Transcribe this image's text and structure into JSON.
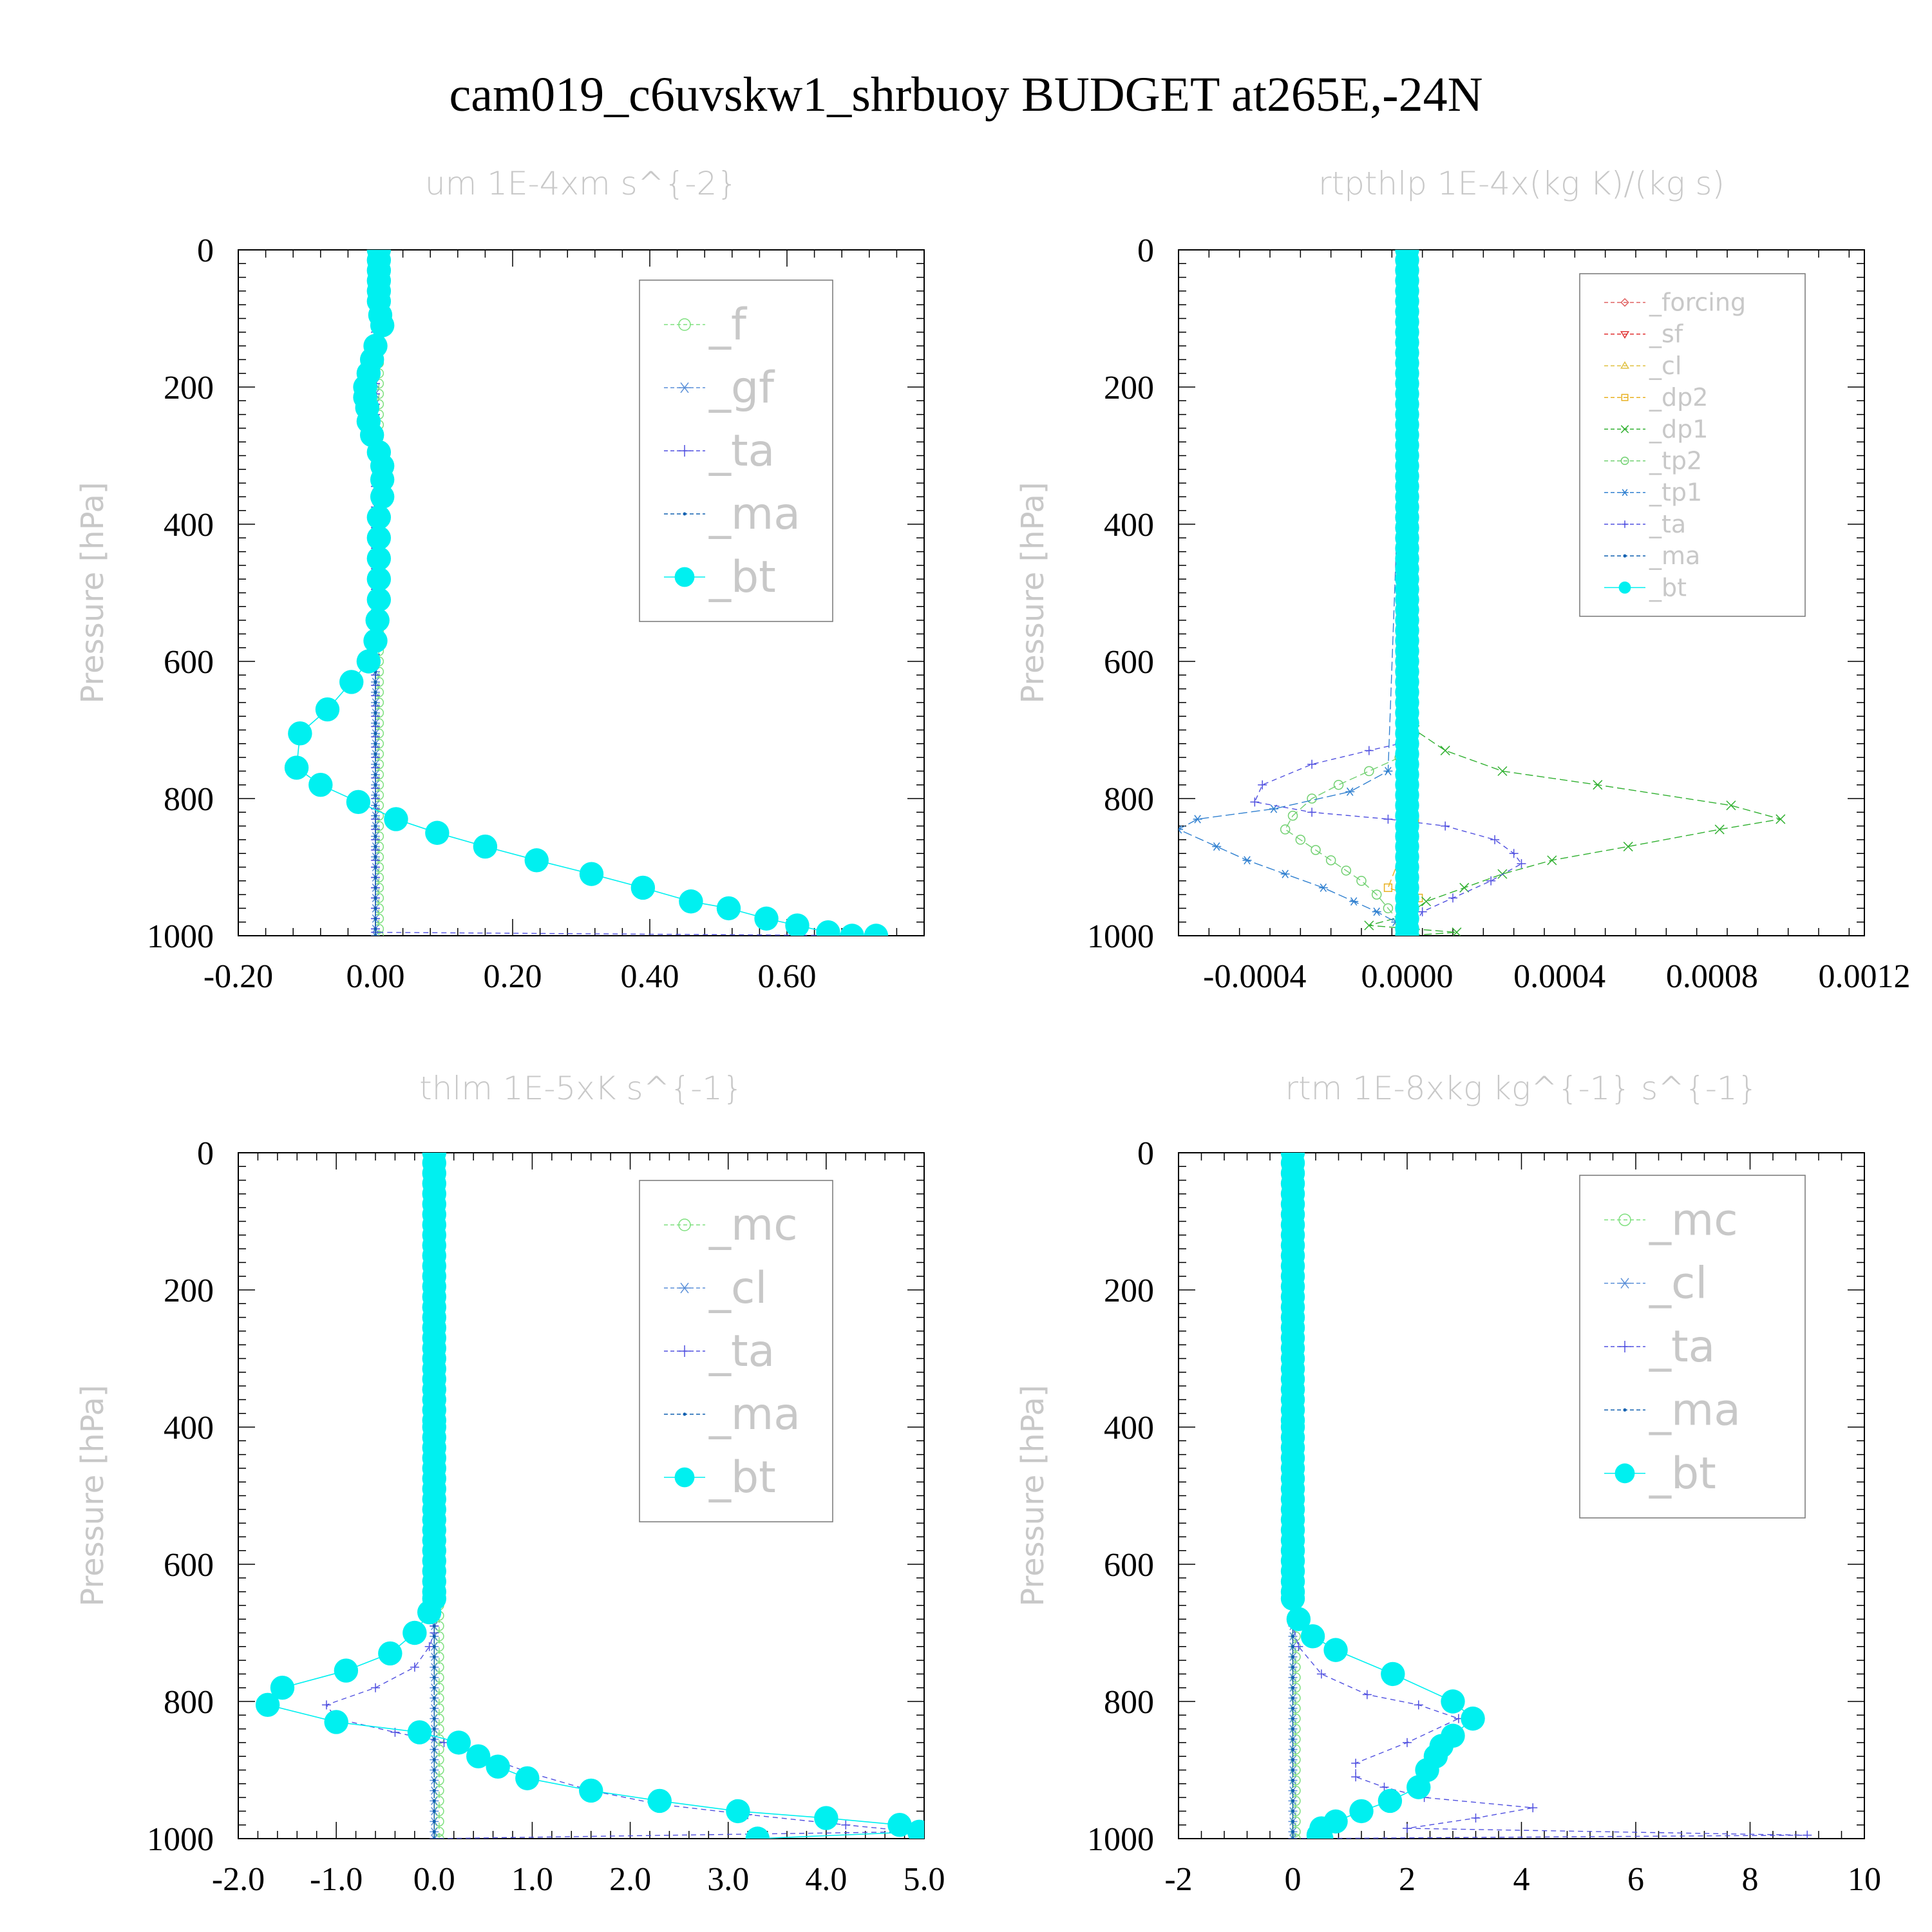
{
  "figure": {
    "title": "cam019_c6uvskw1_shrbuoy  BUDGET at265E,-24N"
  },
  "colors": {
    "_f": "#7ee07e",
    "_gf": "#5a8fd8",
    "_ta": "#5050e0",
    "_ma": "#1060b0",
    "_bt": "#00f0f0",
    "_forcing": "#e06060",
    "_sf": "#e03030",
    "_cl": "#e0c040",
    "_dp2": "#e8b020",
    "_dp1": "#30b030",
    "_tp2": "#70d070",
    "_tp1": "#3080d0",
    "_mc": "#7ee07e",
    "_cl_blue": "#5a8fd8"
  },
  "chart_data": [
    {
      "type": "line",
      "title": "um  1E-4xm s^{-2}",
      "ylabel": "Pressure [hPa]",
      "xlabel": "",
      "xlim": [
        -0.2,
        0.8
      ],
      "ylim": [
        1000,
        0
      ],
      "xticks": [
        "-0.20",
        "0.00",
        "0.20",
        "0.40",
        "0.60"
      ],
      "xtick_values": [
        -0.2,
        0,
        0.2,
        0.4,
        0.6
      ],
      "yticks": [
        "0",
        "200",
        "400",
        "600",
        "800",
        "1000"
      ],
      "legend_position": "top-right",
      "series": [
        {
          "name": "_f",
          "color_key": "_f",
          "marker": "circle-open",
          "x": [
            0.005,
            0.005
          ],
          "y": [
            0,
            1000
          ]
        },
        {
          "name": "_gf",
          "color_key": "_gf",
          "marker": "asterisk",
          "x": [
            0.0,
            0.0
          ],
          "y": [
            0,
            1000
          ]
        },
        {
          "name": "_ta",
          "color_key": "_ta",
          "marker": "plus",
          "x": [
            0.0,
            0.0,
            0.0,
            0.0,
            0.73
          ],
          "y": [
            0,
            500,
            900,
            995,
            1000
          ]
        },
        {
          "name": "_ma",
          "color_key": "_ma",
          "marker": "dot",
          "x": [
            0.0,
            0.0
          ],
          "y": [
            0,
            1000
          ]
        },
        {
          "name": "_bt",
          "color_key": "_bt",
          "marker": "filled-circle",
          "x": [
            0.005,
            0.005,
            0.005,
            0.005,
            0.005,
            0.005,
            0.007,
            0.01,
            0.0,
            -0.005,
            -0.01,
            -0.015,
            -0.015,
            -0.012,
            -0.01,
            -0.005,
            0.005,
            0.01,
            0.01,
            0.01,
            0.005,
            0.005,
            0.005,
            0.005,
            0.005,
            0.003,
            0.0,
            -0.01,
            -0.035,
            -0.07,
            -0.11,
            -0.115,
            -0.08,
            -0.025,
            0.03,
            0.09,
            0.16,
            0.235,
            0.315,
            0.39,
            0.46,
            0.515,
            0.57,
            0.615,
            0.66,
            0.695,
            0.73
          ],
          "y": [
            0,
            15,
            30,
            45,
            60,
            75,
            95,
            110,
            140,
            160,
            180,
            200,
            215,
            230,
            250,
            270,
            295,
            315,
            335,
            360,
            390,
            420,
            450,
            480,
            510,
            540,
            570,
            600,
            630,
            670,
            705,
            755,
            780,
            805,
            830,
            850,
            870,
            890,
            910,
            930,
            950,
            960,
            975,
            985,
            995,
            1000,
            1000
          ]
        }
      ]
    },
    {
      "type": "line",
      "title": "rtpthlp  1E-4x(kg K)/(kg s)",
      "ylabel": "Pressure [hPa]",
      "xlabel": "",
      "xlim": [
        -0.0006,
        0.0012
      ],
      "ylim": [
        1000,
        0
      ],
      "xticks": [
        "-0.0004",
        "0.0000",
        "0.0004",
        "0.0008",
        "0.0012"
      ],
      "xtick_values": [
        -0.0004,
        0,
        0.0004,
        0.0008,
        0.0012
      ],
      "yticks": [
        "0",
        "200",
        "400",
        "600",
        "800",
        "1000"
      ],
      "legend_position": "top-right",
      "series": [
        {
          "name": "_forcing",
          "color_key": "_forcing",
          "marker": "diamond",
          "x": [
            0,
            0
          ],
          "y": [
            0,
            1000
          ]
        },
        {
          "name": "_sf",
          "color_key": "_sf",
          "marker": "triangle-down",
          "x": [
            0,
            0
          ],
          "y": [
            0,
            1000
          ]
        },
        {
          "name": "_cl",
          "color_key": "_cl",
          "marker": "triangle-up",
          "x": [
            0,
            0
          ],
          "y": [
            0,
            1000
          ]
        },
        {
          "name": "_dp2",
          "color_key": "_dp2",
          "marker": "square",
          "x": [
            0,
            0,
            2e-05,
            -5e-05,
            3e-05,
            0
          ],
          "y": [
            0,
            820,
            830,
            930,
            945,
            1000
          ]
        },
        {
          "name": "_dp1",
          "color_key": "_dp1",
          "marker": "cross",
          "x": [
            0,
            0,
            2e-05,
            0.0001,
            0.00025,
            0.0005,
            0.00085,
            0.00098,
            0.00082,
            0.00058,
            0.00038,
            0.00025,
            0.00015,
            5e-05,
            0.0,
            -0.0001,
            0.00013,
            0
          ],
          "y": [
            0,
            680,
            700,
            730,
            760,
            780,
            810,
            830,
            845,
            870,
            890,
            910,
            930,
            950,
            970,
            985,
            995,
            1000
          ]
        },
        {
          "name": "_tp2",
          "color_key": "_tp2",
          "marker": "circle-open",
          "x": [
            0,
            0,
            -2e-05,
            -0.0001,
            -0.00018,
            -0.00025,
            -0.0003,
            -0.00032,
            -0.00028,
            -0.00024,
            -0.0002,
            -0.00016,
            -0.00012,
            -8e-05,
            -5e-05,
            -2e-05,
            0
          ],
          "y": [
            0,
            720,
            740,
            760,
            780,
            800,
            825,
            845,
            860,
            875,
            890,
            905,
            920,
            940,
            960,
            980,
            1000
          ]
        },
        {
          "name": "_tp1",
          "color_key": "_tp1",
          "marker": "asterisk",
          "x": [
            0,
            -5e-05,
            -0.00015,
            -0.00035,
            -0.00055,
            -0.0006,
            -0.0005,
            -0.00042,
            -0.00032,
            -0.00022,
            -0.00014,
            -8e-05,
            -3e-05,
            0
          ],
          "y": [
            0,
            760,
            790,
            815,
            830,
            845,
            870,
            890,
            910,
            930,
            950,
            965,
            980,
            1000
          ]
        },
        {
          "name": "_ta",
          "color_key": "_ta",
          "marker": "plus",
          "x": [
            0,
            -2e-05,
            -0.0001,
            -0.00025,
            -0.00038,
            -0.0004,
            -0.00025,
            -5e-05,
            0.0001,
            0.00023,
            0.00028,
            0.0003,
            0.00022,
            0.00012,
            4e-05,
            0.0
          ],
          "y": [
            0,
            720,
            730,
            750,
            780,
            805,
            820,
            830,
            840,
            860,
            880,
            895,
            920,
            945,
            965,
            1000
          ]
        },
        {
          "name": "_ma",
          "color_key": "_ma",
          "marker": "dot",
          "x": [
            0,
            0
          ],
          "y": [
            0,
            1000
          ]
        },
        {
          "name": "_bt",
          "color_key": "_bt",
          "marker": "filled-circle",
          "x": [
            0,
            0
          ],
          "y": [
            0,
            1000
          ]
        }
      ]
    },
    {
      "type": "line",
      "title": "thlm  1E-5xK s^{-1}",
      "ylabel": "Pressure [hPa]",
      "xlabel": "",
      "xlim": [
        -2.0,
        5.0
      ],
      "ylim": [
        1000,
        0
      ],
      "xticks": [
        "-2.0",
        "-1.0",
        "0.0",
        "1.0",
        "2.0",
        "3.0",
        "4.0",
        "5.0"
      ],
      "xtick_values": [
        -2,
        -1,
        0,
        1,
        2,
        3,
        4,
        5
      ],
      "yticks": [
        "0",
        "200",
        "400",
        "600",
        "800",
        "1000"
      ],
      "legend_position": "top-right",
      "series": [
        {
          "name": "_mc",
          "color_key": "_mc",
          "marker": "circle-open",
          "x": [
            0.05,
            0.05
          ],
          "y": [
            0,
            1000
          ]
        },
        {
          "name": "_cl",
          "color_key": "_cl_blue",
          "marker": "asterisk",
          "x": [
            0,
            0
          ],
          "y": [
            0,
            1000
          ]
        },
        {
          "name": "_ta",
          "color_key": "_ta",
          "marker": "plus",
          "x": [
            0,
            0,
            -0.05,
            -0.2,
            -0.6,
            -1.1,
            -1.0,
            -0.4,
            0.1,
            0.5,
            1.0,
            1.6,
            2.3,
            3.2,
            4.2,
            4.9,
            0.0
          ],
          "y": [
            0,
            700,
            720,
            750,
            780,
            805,
            825,
            845,
            860,
            880,
            905,
            930,
            950,
            965,
            980,
            990,
            1000
          ]
        },
        {
          "name": "_ma",
          "color_key": "_ma",
          "marker": "dot",
          "x": [
            0,
            0
          ],
          "y": [
            0,
            1000
          ]
        },
        {
          "name": "_bt",
          "color_key": "_bt",
          "marker": "filled-circle",
          "x": [
            0,
            0,
            0,
            -0.05,
            -0.2,
            -0.45,
            -0.9,
            -1.55,
            -1.7,
            -1.0,
            -0.15,
            0.25,
            0.45,
            0.65,
            0.95,
            1.6,
            2.3,
            3.1,
            4.0,
            4.75,
            4.95,
            3.3
          ],
          "y": [
            0,
            400,
            650,
            670,
            700,
            730,
            755,
            780,
            805,
            830,
            845,
            860,
            880,
            895,
            912,
            930,
            945,
            960,
            970,
            980,
            990,
            1000
          ]
        }
      ]
    },
    {
      "type": "line",
      "title": "rtm  1E-8xkg kg^{-1} s^{-1}",
      "ylabel": "Pressure [hPa]",
      "xlabel": "",
      "xlim": [
        -2,
        10
      ],
      "ylim": [
        1000,
        0
      ],
      "xticks": [
        "-2",
        "0",
        "2",
        "4",
        "6",
        "8",
        "10"
      ],
      "xtick_values": [
        -2,
        0,
        2,
        4,
        6,
        8,
        10
      ],
      "yticks": [
        "0",
        "200",
        "400",
        "600",
        "800",
        "1000"
      ],
      "legend_position": "top-right",
      "series": [
        {
          "name": "_mc",
          "color_key": "_mc",
          "marker": "circle-open",
          "x": [
            0.05,
            0.05
          ],
          "y": [
            0,
            1000
          ]
        },
        {
          "name": "_cl",
          "color_key": "_cl_blue",
          "marker": "asterisk",
          "x": [
            0,
            0
          ],
          "y": [
            0,
            1000
          ]
        },
        {
          "name": "_ta",
          "color_key": "_ta",
          "marker": "plus",
          "x": [
            0,
            0,
            0.1,
            0.5,
            1.3,
            2.2,
            2.9,
            2.0,
            1.1,
            1.1,
            1.6,
            2.3,
            4.2,
            3.2,
            2.0,
            9.0,
            0.0
          ],
          "y": [
            0,
            690,
            720,
            760,
            790,
            805,
            825,
            860,
            890,
            910,
            925,
            940,
            955,
            970,
            985,
            995,
            1000
          ]
        },
        {
          "name": "_ma",
          "color_key": "_ma",
          "marker": "dot",
          "x": [
            0,
            0
          ],
          "y": [
            0,
            1000
          ]
        },
        {
          "name": "_bt",
          "color_key": "_bt",
          "marker": "filled-circle",
          "x": [
            0,
            0,
            0,
            0.1,
            0.35,
            0.75,
            1.75,
            2.8,
            3.15,
            2.8,
            2.6,
            2.5,
            2.35,
            2.2,
            1.7,
            1.2,
            0.75,
            0.5,
            0.45,
            0.5
          ],
          "y": [
            0,
            400,
            650,
            680,
            705,
            725,
            760,
            800,
            825,
            850,
            865,
            880,
            900,
            925,
            945,
            960,
            975,
            985,
            995,
            1000
          ]
        }
      ]
    }
  ]
}
